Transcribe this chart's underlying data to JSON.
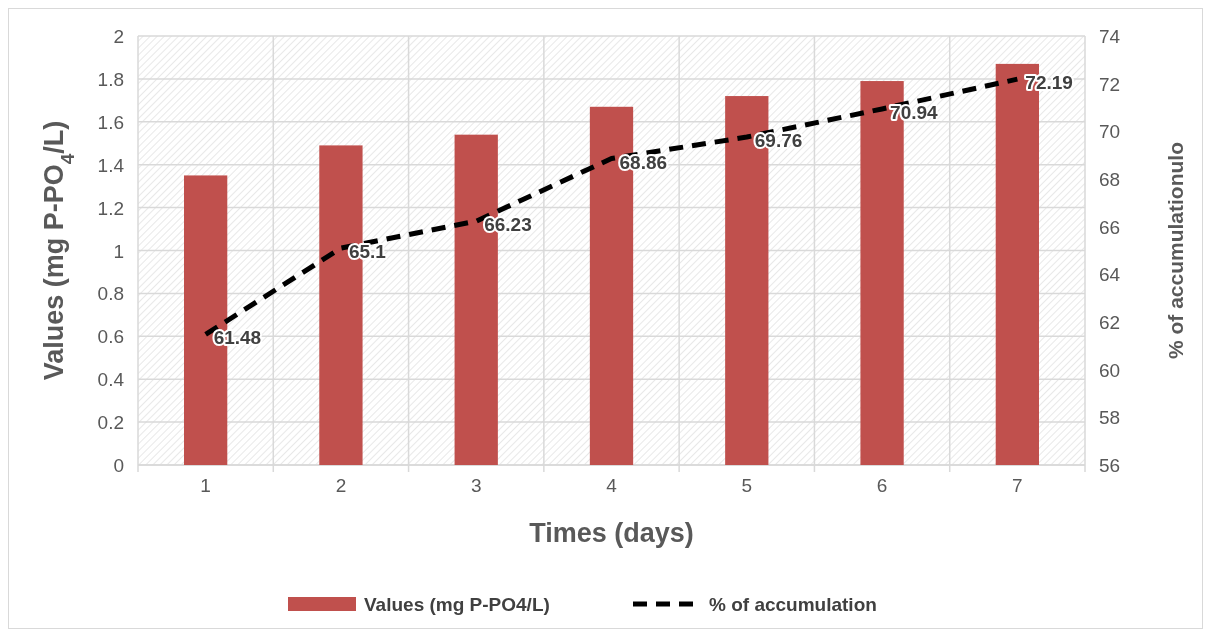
{
  "chart_data": {
    "type": "bar",
    "xlabel": "Times (days)",
    "ylabel": "Values (mg P-PO$_{4}$/L)",
    "y2label": "% of accumulationulo",
    "categories": [
      "1",
      "2",
      "3",
      "4",
      "5",
      "6",
      "7"
    ],
    "series": [
      {
        "name": "Values (mg P-PO4/L)",
        "color": "#c0504d",
        "values": [
          1.35,
          1.49,
          1.54,
          1.67,
          1.72,
          1.79,
          1.87
        ]
      },
      {
        "name": "% of accumulation",
        "type": "line",
        "axis": "y2",
        "color": "#000000",
        "line_style": "dashed",
        "data_labels": true,
        "values": [
          61.48,
          65.1,
          66.23,
          68.86,
          69.76,
          70.94,
          72.19
        ]
      }
    ],
    "ylim": [
      0,
      2
    ],
    "yticks": [
      0,
      0.2,
      0.4,
      0.6,
      0.8,
      1,
      1.2,
      1.4,
      1.6,
      1.8,
      2
    ],
    "y2lim": [
      56,
      74
    ],
    "y2ticks": [
      56,
      58,
      60,
      62,
      64,
      66,
      68,
      70,
      72,
      74
    ],
    "grid": true,
    "legend": "bottom"
  }
}
